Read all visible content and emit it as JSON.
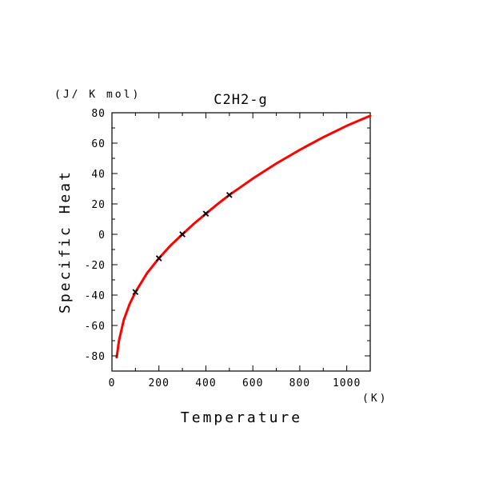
{
  "chart_data": {
    "type": "line",
    "title": "C2H2-g",
    "xlabel": "Temperature",
    "ylabel": "Specific Heat",
    "x_unit": "(K)",
    "y_unit": "(J/ K mol)",
    "xlim": [
      0,
      1100
    ],
    "ylim": [
      -90,
      80
    ],
    "xticks": [
      0,
      200,
      400,
      600,
      800,
      1000
    ],
    "yticks": [
      -80,
      -60,
      -40,
      -20,
      0,
      20,
      40,
      60,
      80
    ],
    "grid": false,
    "series": [
      {
        "kind": "curve",
        "color": "#ff0000",
        "x": [
          20,
          30,
          50,
          75,
          100,
          150,
          200,
          250,
          300,
          350,
          400,
          450,
          500,
          600,
          700,
          800,
          900,
          1000,
          1100
        ],
        "y": [
          -81,
          -70,
          -56.5,
          -46,
          -38,
          -25.5,
          -15.8,
          -7.3,
          0,
          7.1,
          13.6,
          19.9,
          25.9,
          36.7,
          46.6,
          55.6,
          63.9,
          71.4,
          78
        ]
      },
      {
        "kind": "markers",
        "marker": "x",
        "color": "#000000",
        "x": [
          100,
          200,
          300,
          400,
          500
        ],
        "y": [
          -38,
          -15.8,
          0,
          13.6,
          25.9
        ]
      }
    ]
  }
}
